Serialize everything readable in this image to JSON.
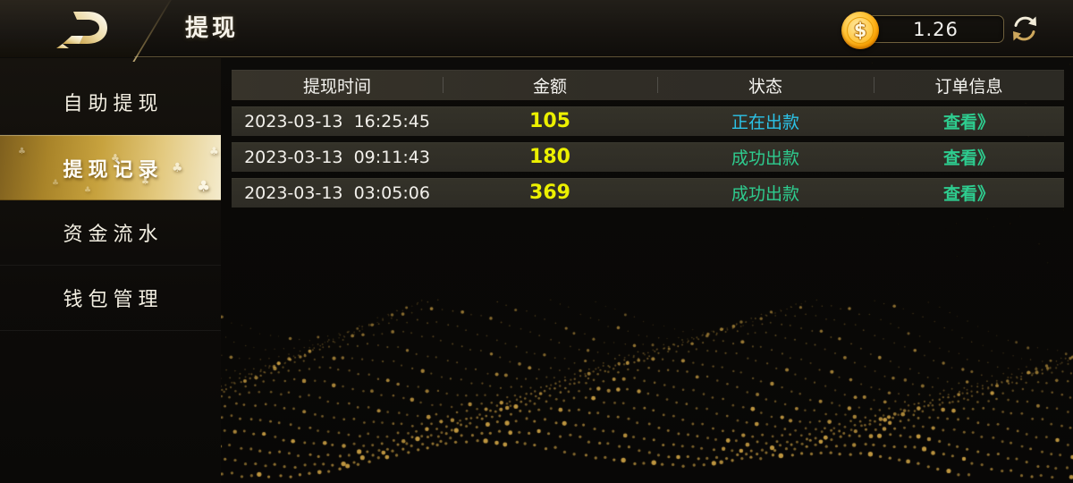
{
  "topbar": {
    "title": "提现",
    "balance_value": "1.26",
    "coin_symbol": "$"
  },
  "sidebar": {
    "items": [
      {
        "label": "自助提现",
        "active": false
      },
      {
        "label": "提现记录",
        "active": true
      },
      {
        "label": "资金流水",
        "active": false
      },
      {
        "label": "钱包管理",
        "active": false
      }
    ]
  },
  "table": {
    "headers": [
      "提现时间",
      "金额",
      "状态",
      "订单信息"
    ],
    "rows": [
      {
        "time": "2023-03-13  16:25:45",
        "amount": "105",
        "status": "正在出款",
        "status_color": "#2cc3e8",
        "link": "查看》"
      },
      {
        "time": "2023-03-13  09:11:43",
        "amount": "180",
        "status": "成功出款",
        "status_color": "#2ecc8f",
        "link": "查看》"
      },
      {
        "time": "2023-03-13  03:05:06",
        "amount": "369",
        "status": "成功出款",
        "status_color": "#2ecc8f",
        "link": "查看》"
      }
    ]
  },
  "icons": {
    "club_glyph": "♣",
    "coin": "dollar-coin",
    "refresh": "refresh-arrows",
    "logo": "brand-d-arrow"
  },
  "colors": {
    "accent_gold": "#c7a23e",
    "amount_yellow": "#ecf000",
    "link_green": "#2ecc8f",
    "status_cyan": "#2cc3e8",
    "dot_gold": "#d2a546"
  }
}
